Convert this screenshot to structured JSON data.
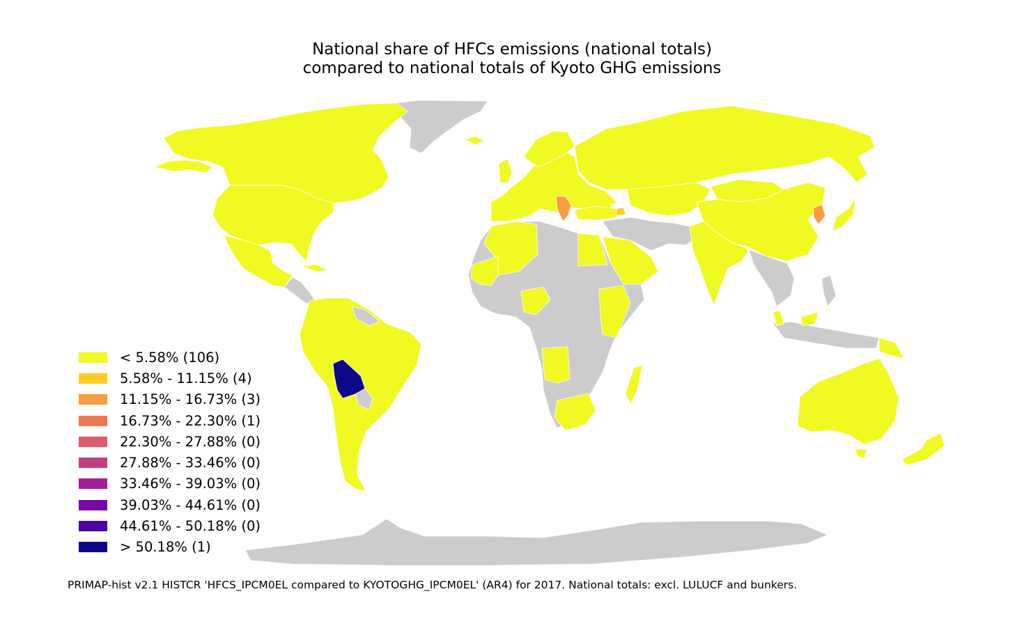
{
  "title": {
    "line1": "National share of HFCs emissions (national totals)",
    "line2": "compared to national totals of Kyoto GHG emissions"
  },
  "legend": [
    {
      "label": "< 5.58% (106)",
      "color": "#f0f921"
    },
    {
      "label": "5.58% - 11.15% (4)",
      "color": "#fccd25"
    },
    {
      "label": "11.15% - 16.73% (3)",
      "color": "#f89d40"
    },
    {
      "label": "16.73% - 22.30% (1)",
      "color": "#ed7953"
    },
    {
      "label": "22.30% - 27.88% (0)",
      "color": "#dc5c6b"
    },
    {
      "label": "27.88% - 33.46% (0)",
      "color": "#c33d80"
    },
    {
      "label": "33.46% - 39.03% (0)",
      "color": "#a41e9a"
    },
    {
      "label": "39.03% - 44.61% (0)",
      "color": "#7a04a8"
    },
    {
      "label": "44.61% - 50.18% (0)",
      "color": "#4d02a1"
    },
    {
      "label": "> 50.18% (1)",
      "color": "#0d0887"
    }
  ],
  "colors": {
    "no_data": "#cccccc",
    "border": "#ffffff"
  },
  "footer": "PRIMAP-hist v2.1 HISTCR 'HFCS_IPCM0EL compared to KYOTOGHG_IPCM0EL' (AR4) for 2017. National totals: excl. LULUCF and bunkers."
}
